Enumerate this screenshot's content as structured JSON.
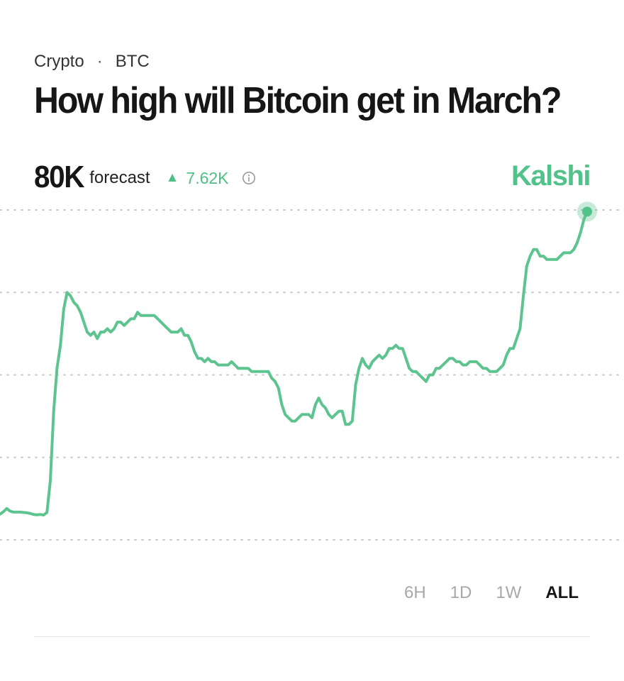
{
  "header": {
    "category": "Crypto",
    "separator": "·",
    "ticker": "BTC",
    "title": "How high will Bitcoin get in March?"
  },
  "forecast": {
    "value": "80K",
    "label": "forecast",
    "change_arrow": "▲",
    "change": "7.62K",
    "info_icon": "info-circle-icon"
  },
  "brand": "Kalshi",
  "colors": {
    "line": "#5ec48f",
    "brand": "#52c28a",
    "up": "#4fbf85",
    "grid": "#c9c9c9"
  },
  "time_ranges": [
    {
      "label": "6H",
      "active": false
    },
    {
      "label": "1D",
      "active": false
    },
    {
      "label": "1W",
      "active": false
    },
    {
      "label": "ALL",
      "active": true
    }
  ],
  "chart_data": {
    "type": "line",
    "title": "",
    "xlabel": "",
    "ylabel": "",
    "grid": true,
    "ylim": [
      0,
      100
    ],
    "series": [
      {
        "values": [
          7.8,
          8.5,
          9.5,
          8.7,
          8.4,
          8.4,
          8.4,
          8.3,
          8.2,
          8.0,
          7.7,
          7.6,
          7.7,
          7.5,
          8.3,
          18,
          39,
          52,
          59,
          70,
          75,
          74,
          72,
          71,
          69,
          66,
          63,
          62,
          63,
          61,
          63,
          63,
          64,
          63,
          64,
          66,
          66,
          65,
          66,
          67,
          67,
          69,
          68,
          68,
          68,
          68,
          68,
          67,
          66,
          65,
          64,
          63,
          63,
          63,
          64,
          62,
          62,
          60,
          57,
          55,
          55,
          54,
          55,
          54,
          54,
          53,
          53,
          53,
          53,
          54,
          53,
          52,
          52,
          52,
          52,
          51,
          51,
          51,
          51,
          51,
          51,
          49,
          48,
          46,
          41,
          38,
          37,
          36,
          36,
          37,
          38,
          38,
          38,
          37,
          41,
          43,
          41,
          40,
          38,
          37,
          38,
          39,
          39,
          35,
          35,
          36,
          47,
          52,
          55,
          53,
          52,
          54,
          55,
          56,
          55,
          56,
          58,
          58,
          59,
          58,
          58,
          55,
          52,
          51,
          51,
          50,
          49,
          48,
          50,
          50,
          52,
          52,
          53,
          54,
          55,
          55,
          54,
          54,
          53,
          53,
          54,
          54,
          54,
          53,
          52,
          52,
          51,
          51,
          51,
          52,
          53,
          56,
          58,
          58,
          61,
          64,
          74,
          83,
          86,
          88,
          88,
          86,
          86,
          85,
          85,
          85,
          85,
          86,
          87,
          87,
          87,
          88,
          90,
          93,
          97,
          99.5
        ]
      }
    ]
  }
}
